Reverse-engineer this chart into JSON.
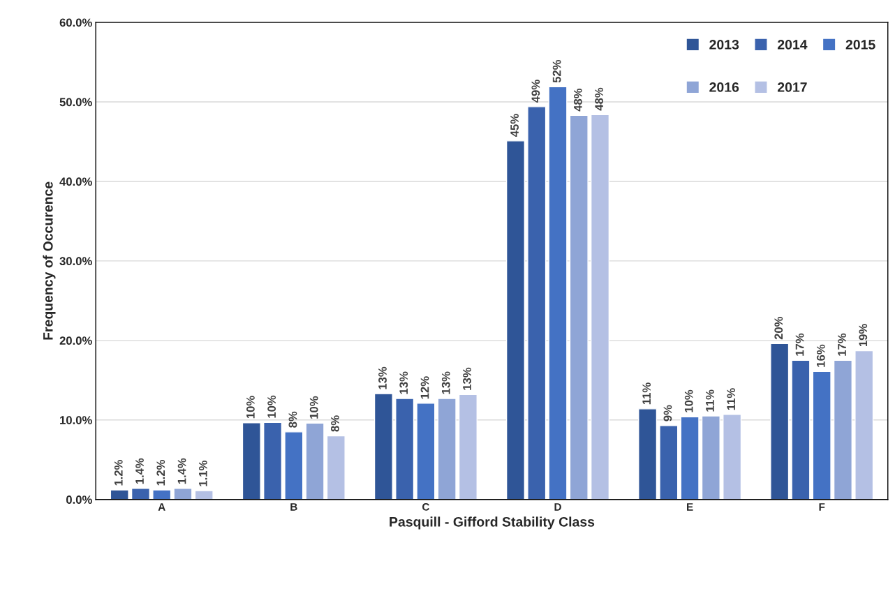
{
  "chart_data": {
    "type": "bar",
    "xlabel": "Pasquill - Gifford Stability Class",
    "ylabel": "Frequency of Occurence",
    "categories": [
      "A",
      "B",
      "C",
      "D",
      "E",
      "F"
    ],
    "ylim": [
      0,
      60
    ],
    "yticks": [
      {
        "value": 0,
        "label": "0.0%"
      },
      {
        "value": 10,
        "label": "10.0%"
      },
      {
        "value": 20,
        "label": "20.0%"
      },
      {
        "value": 30,
        "label": "30.0%"
      },
      {
        "value": 40,
        "label": "40.0%"
      },
      {
        "value": 50,
        "label": "50.0%"
      },
      {
        "value": 60,
        "label": "60.0%"
      }
    ],
    "grid": "y",
    "legend": "top right",
    "series": [
      {
        "name": "2013",
        "color": "#2f5597",
        "values": [
          1.2,
          9.65,
          13.3,
          45.1,
          11.4,
          19.6
        ],
        "value_labels": [
          "1.2%",
          "10%",
          "13%",
          "45%",
          "11%",
          "20%"
        ]
      },
      {
        "name": "2014",
        "color": "#3a62ad",
        "values": [
          1.4,
          9.7,
          12.7,
          49.4,
          9.3,
          17.5
        ],
        "value_labels": [
          "1.4%",
          "10%",
          "13%",
          "49%",
          "9%",
          "17%"
        ]
      },
      {
        "name": "2015",
        "color": "#4472c4",
        "values": [
          1.2,
          8.5,
          12.1,
          51.9,
          10.4,
          16.1
        ],
        "value_labels": [
          "1.2%",
          "8%",
          "12%",
          "52%",
          "10%",
          "16%"
        ]
      },
      {
        "name": "2016",
        "color": "#8fa5d6",
        "values": [
          1.4,
          9.6,
          12.7,
          48.3,
          10.5,
          17.5
        ],
        "value_labels": [
          "1.4%",
          "10%",
          "13%",
          "48%",
          "11%",
          "17%"
        ]
      },
      {
        "name": "2017",
        "color": "#b4c0e4",
        "values": [
          1.1,
          8.0,
          13.2,
          48.4,
          10.7,
          18.7
        ],
        "value_labels": [
          "1.1%",
          "8%",
          "13%",
          "48%",
          "11%",
          "19%"
        ]
      }
    ]
  }
}
